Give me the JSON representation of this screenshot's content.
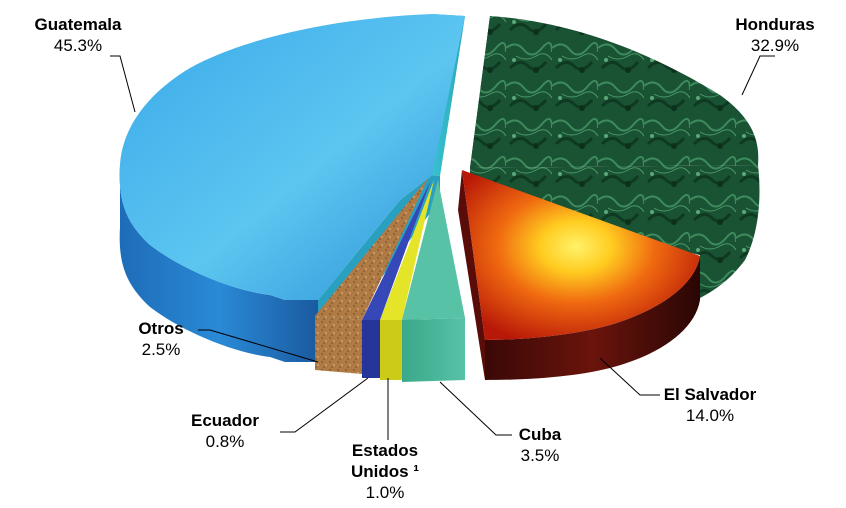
{
  "chart_data": {
    "type": "pie",
    "style": "3d-exploded",
    "slices": [
      {
        "name": "Guatemala",
        "percent_label": "45.3%",
        "value": 45.3,
        "color": "#2f9ae0",
        "texture": "blue-gradient"
      },
      {
        "name": "Honduras",
        "percent_label": "32.9%",
        "value": 32.9,
        "color": "#1f5a3a",
        "texture": "green-marble"
      },
      {
        "name": "El Salvador",
        "percent_label": "14.0%",
        "value": 14.0,
        "color": "#d62a10",
        "texture": "fire-gradient"
      },
      {
        "name": "Cuba",
        "percent_label": "3.5%",
        "value": 3.5,
        "color": "#46b89a",
        "texture": "teal"
      },
      {
        "name": "Estados Unidos ¹",
        "name_lines": [
          "Estados",
          "Unidos ¹"
        ],
        "percent_label": "1.0%",
        "value": 1.0,
        "color": "#d8d820",
        "texture": "yellow"
      },
      {
        "name": "Ecuador",
        "percent_label": "0.8%",
        "value": 0.8,
        "color": "#2b3fa8",
        "texture": "navy"
      },
      {
        "name": "Otros",
        "percent_label": "2.5%",
        "value": 2.5,
        "color": "#b57a45",
        "texture": "cork"
      }
    ]
  }
}
